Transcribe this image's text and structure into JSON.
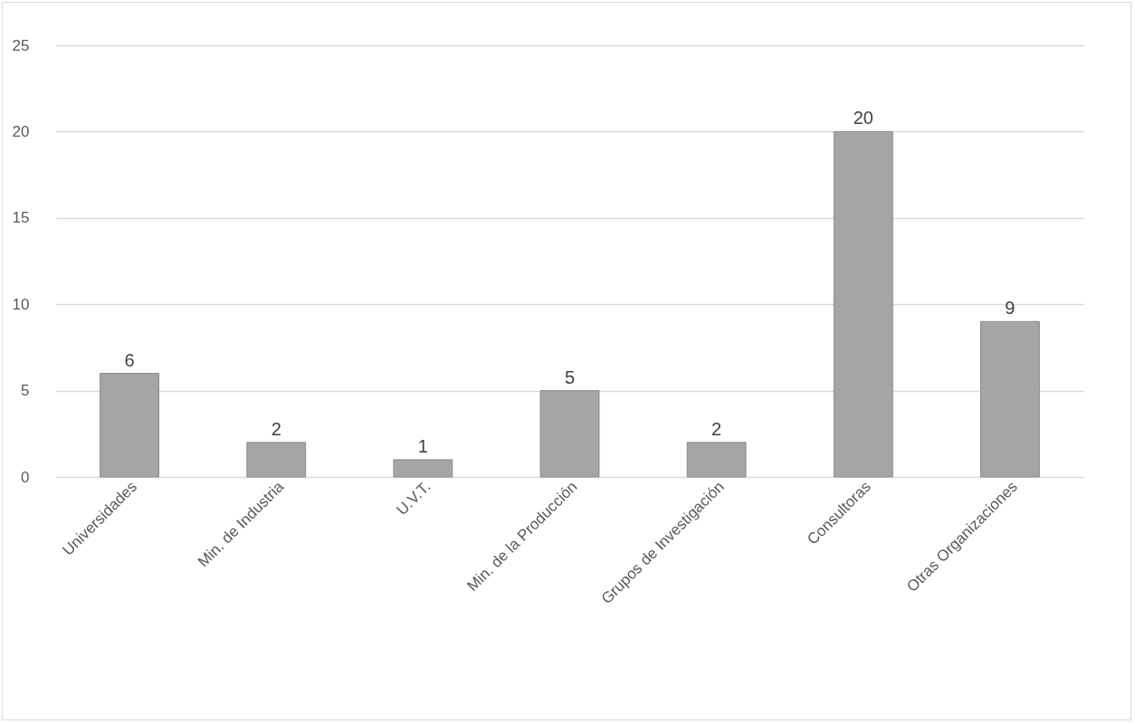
{
  "chart_data": {
    "type": "bar",
    "categories": [
      "Universidades",
      "Min. de Industria",
      "U.V.T.",
      "Min. de la Producción",
      "Grupos de Investigación",
      "Consultoras",
      "Otras Organizaciones"
    ],
    "values": [
      6,
      2,
      1,
      5,
      2,
      20,
      9
    ],
    "color": "#a5a5a5",
    "ylim": [
      0,
      25
    ],
    "yticks": [
      0,
      5,
      10,
      15,
      20,
      25
    ],
    "grid": "y",
    "data_labels": true
  }
}
